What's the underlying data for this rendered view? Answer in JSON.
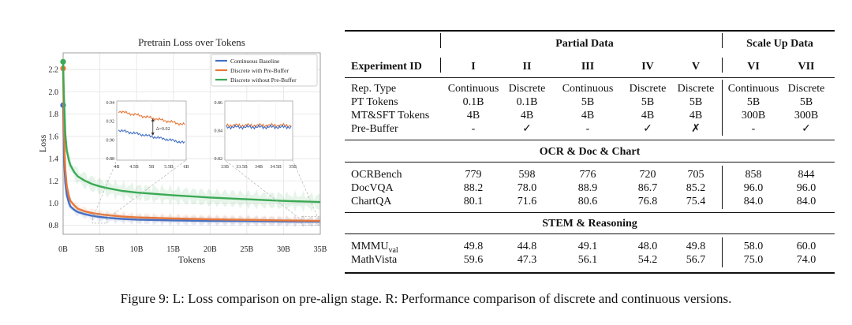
{
  "chart_data": {
    "type": "line",
    "title": "Pretrain Loss over Tokens",
    "xlabel": "Tokens",
    "ylabel": "Loss",
    "xlim": [
      0,
      35
    ],
    "ylim": [
      0.72,
      2.35
    ],
    "x_ticks": [
      0,
      5,
      10,
      15,
      20,
      25,
      30,
      35
    ],
    "x_tick_labels": [
      "0B",
      "5B",
      "10B",
      "15B",
      "20B",
      "25B",
      "30B",
      "35B"
    ],
    "y_ticks": [
      0.8,
      1.0,
      1.2,
      1.4,
      1.6,
      1.8,
      2.0,
      2.2
    ],
    "y_tick_labels": [
      "0.8",
      "1.0",
      "1.2",
      "1.4",
      "1.6",
      "1.8",
      "2.0",
      "2.2"
    ],
    "legend_position": "top-right",
    "series": [
      {
        "name": "Continuous Baseline",
        "color": "#4470c4",
        "start": 1.88,
        "x": [
          0.1,
          0.2,
          0.3,
          0.5,
          0.8,
          1.0,
          1.5,
          2,
          3,
          4,
          5,
          6,
          8,
          10,
          15,
          20,
          25,
          30,
          35
        ],
        "y": [
          1.5,
          1.3,
          1.18,
          1.07,
          1.0,
          0.97,
          0.94,
          0.92,
          0.9,
          0.885,
          0.875,
          0.868,
          0.858,
          0.852,
          0.845,
          0.84,
          0.838,
          0.835,
          0.833
        ]
      },
      {
        "name": "Discrete with Pre-Buffer",
        "color": "#e8783a",
        "start": 2.21,
        "x": [
          0.1,
          0.2,
          0.3,
          0.5,
          0.8,
          1.0,
          1.5,
          2,
          3,
          4,
          5,
          6,
          8,
          10,
          15,
          20,
          25,
          30,
          35
        ],
        "y": [
          1.7,
          1.45,
          1.3,
          1.15,
          1.06,
          1.02,
          0.98,
          0.95,
          0.925,
          0.91,
          0.9,
          0.892,
          0.88,
          0.872,
          0.862,
          0.855,
          0.85,
          0.845,
          0.84
        ]
      },
      {
        "name": "Discrete without Pre-Buffer",
        "color": "#3aaa55",
        "start": 2.27,
        "x": [
          0.1,
          0.2,
          0.3,
          0.5,
          0.8,
          1.0,
          1.5,
          2,
          3,
          4,
          5,
          6,
          8,
          10,
          15,
          20,
          25,
          30,
          35
        ],
        "y": [
          2.0,
          1.8,
          1.62,
          1.47,
          1.38,
          1.34,
          1.28,
          1.24,
          1.2,
          1.17,
          1.15,
          1.135,
          1.11,
          1.095,
          1.07,
          1.05,
          1.035,
          1.02,
          1.01
        ]
      }
    ],
    "insets": [
      {
        "x_ticks": [
          "4B",
          "4.5B",
          "5B",
          "5.5B",
          "6B"
        ],
        "y_ticks": [
          "0.94",
          "0.92",
          "0.90",
          "0.88"
        ],
        "annotation": "Δ=0.02"
      },
      {
        "x_ticks": [
          "33B",
          "33.5B",
          "34B",
          "34.5B",
          "35B"
        ],
        "y_ticks": [
          "0.86",
          "0.84",
          "0.82"
        ],
        "annotation": ""
      }
    ]
  },
  "table": {
    "group_headers": [
      "Partial Data",
      "Scale Up Data"
    ],
    "id_header": "Experiment ID",
    "columns": [
      "I",
      "II",
      "III",
      "IV",
      "V",
      "VI",
      "VII"
    ],
    "config_rows": [
      {
        "label": "Rep. Type",
        "values": [
          "Continuous",
          "Discrete",
          "Continuous",
          "Discrete",
          "Discrete",
          "Continuous",
          "Discrete"
        ]
      },
      {
        "label": "PT Tokens",
        "values": [
          "0.1B",
          "0.1B",
          "5B",
          "5B",
          "5B",
          "5B",
          "5B"
        ]
      },
      {
        "label": "MT&SFT Tokens",
        "values": [
          "4B",
          "4B",
          "4B",
          "4B",
          "4B",
          "300B",
          "300B"
        ]
      },
      {
        "label": "Pre-Buffer",
        "values": [
          "-",
          "✓",
          "-",
          "✓",
          "✗",
          "-",
          "✓"
        ]
      }
    ],
    "sections": [
      {
        "title": "OCR & Doc & Chart",
        "rows": [
          {
            "label": "OCRBench",
            "values": [
              "779",
              "598",
              "776",
              "720",
              "705",
              "858",
              "844"
            ]
          },
          {
            "label": "DocVQA",
            "values": [
              "88.2",
              "78.0",
              "88.9",
              "86.7",
              "85.2",
              "96.0",
              "96.0"
            ]
          },
          {
            "label": "ChartQA",
            "values": [
              "80.1",
              "71.6",
              "80.6",
              "76.8",
              "75.4",
              "84.0",
              "84.0"
            ]
          }
        ]
      },
      {
        "title": "STEM & Reasoning",
        "rows": [
          {
            "label": "MMMU",
            "sub": "val",
            "values": [
              "49.8",
              "44.8",
              "49.1",
              "48.0",
              "49.8",
              "58.0",
              "60.0"
            ]
          },
          {
            "label": "MathVista",
            "values": [
              "59.6",
              "47.3",
              "56.1",
              "54.2",
              "56.7",
              "75.0",
              "74.0"
            ]
          }
        ]
      }
    ]
  },
  "caption": "Figure 9: L: Loss comparison on pre-align stage. R: Performance comparison of discrete and continuous versions."
}
